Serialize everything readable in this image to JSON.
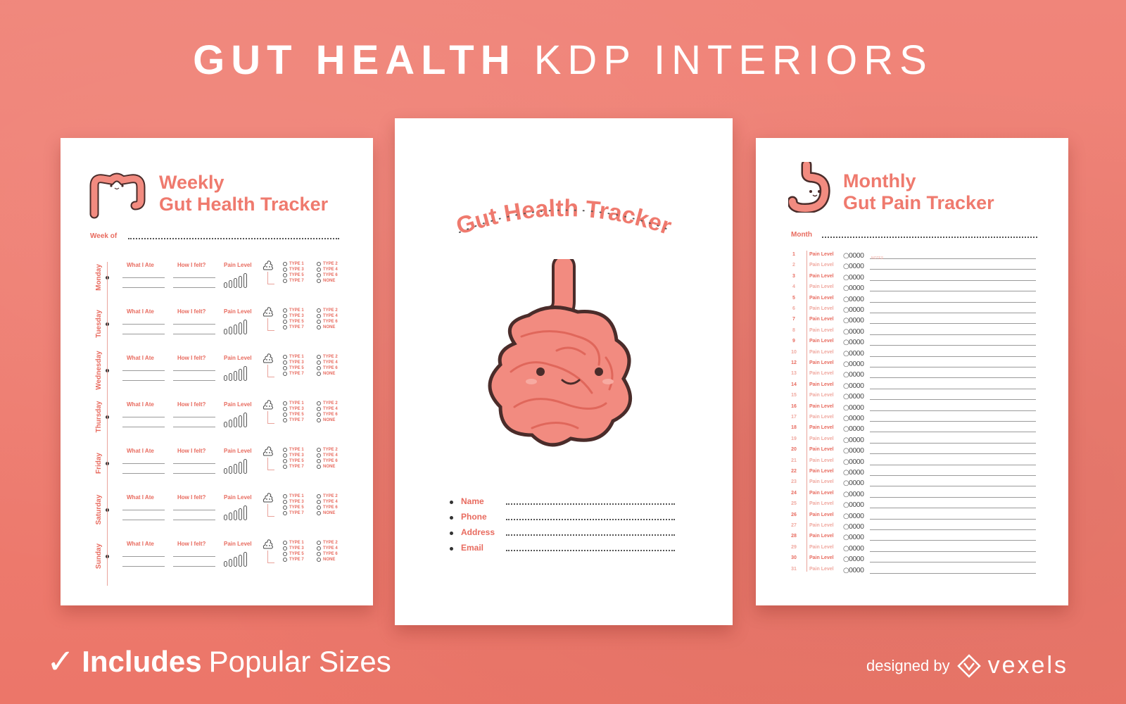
{
  "headline": {
    "strong": "GUT HEALTH",
    "light": "KDP INTERIORS"
  },
  "left_page": {
    "title_line1": "Weekly",
    "title_line2": "Gut Health Tracker",
    "week_of_label": "Week of",
    "column_headers": {
      "ate": "What I Ate",
      "felt": "How I felt?",
      "pain": "Pain Level"
    },
    "days": [
      "Monday",
      "Tuesday",
      "Wednesday",
      "Thursday",
      "Friday",
      "Saturday",
      "Sunday"
    ],
    "types": [
      "TYPE 1",
      "TYPE 2",
      "TYPE 3",
      "TYPE 4",
      "TYPE 5",
      "TYPE 6",
      "TYPE 7",
      "NONE"
    ]
  },
  "middle_page": {
    "cover_title": "Gut Health Tracker",
    "fields": [
      "Name",
      "Phone",
      "Address",
      "Email"
    ]
  },
  "right_page": {
    "title_line1": "Monthly",
    "title_line2": "Gut Pain Tracker",
    "month_label": "Month",
    "row_label": "Pain Level",
    "notes_label": "NOTES",
    "circles": "○0000",
    "days": [
      1,
      2,
      3,
      4,
      5,
      6,
      7,
      8,
      9,
      10,
      12,
      13,
      14,
      15,
      16,
      17,
      18,
      19,
      20,
      21,
      22,
      23,
      24,
      25,
      26,
      27,
      28,
      29,
      30,
      31
    ]
  },
  "footer": {
    "check": "✓",
    "includes": "Includes",
    "rest": "Popular Sizes",
    "designed_by": "designed by",
    "brand": "vexels"
  },
  "colors": {
    "background": "#ef7d70",
    "accent": "#e86b5f",
    "gut_fill": "#f28b80",
    "outline": "#4a2c2a"
  }
}
